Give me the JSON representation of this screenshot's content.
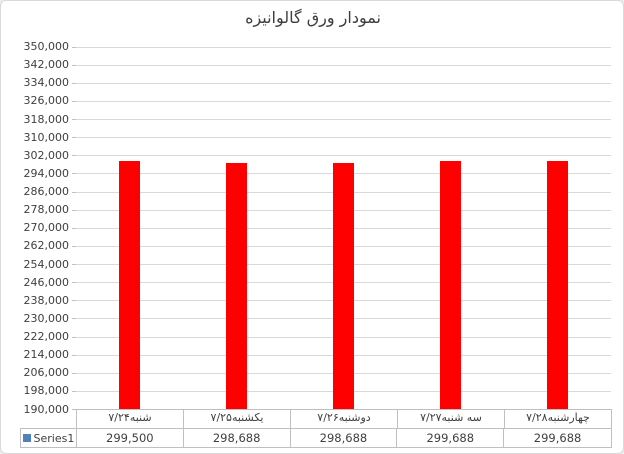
{
  "chart_data": {
    "type": "bar",
    "title": "نمودار ورق گالوانیزه",
    "categories": [
      "شنبه۷/۲۴",
      "یکشنبه۷/۲۵",
      "دوشنبه۷/۲۶",
      "سه شنبه۷/۲۷",
      "چهارشنبه۷/۲۸"
    ],
    "series": [
      {
        "name": "Series1",
        "values": [
          299500,
          298688,
          298688,
          299688,
          299688
        ],
        "color": "#ff0000",
        "legend_key_color": "#4f81bd"
      }
    ],
    "value_labels": [
      "299,500",
      "298,688",
      "298,688",
      "299,688",
      "299,688"
    ],
    "ylim": [
      190000,
      350000
    ],
    "ytick_step": 8000,
    "ytick_labels": [
      "350,000",
      "342,000",
      "334,000",
      "326,000",
      "318,000",
      "310,000",
      "302,000",
      "294,000",
      "286,000",
      "278,000",
      "270,000",
      "262,000",
      "254,000",
      "246,000",
      "238,000",
      "230,000",
      "222,000",
      "214,000",
      "206,000",
      "198,000",
      "190,000"
    ],
    "grid": true,
    "gridline_color": "#d9d9d9",
    "legend_position": "data-table",
    "xlabel": "",
    "ylabel": ""
  }
}
